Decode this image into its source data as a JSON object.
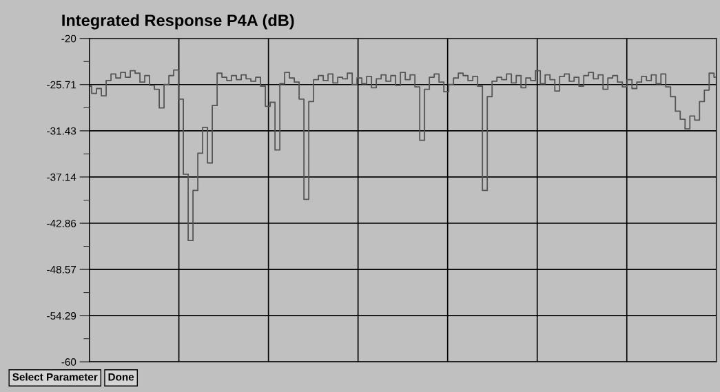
{
  "chart_data": {
    "type": "step",
    "title": "Integrated Response P4A (dB)",
    "categories": [
      null,
      null,
      null,
      null,
      null,
      null,
      null,
      null,
      null,
      null,
      null,
      null,
      null,
      null,
      null,
      null,
      null,
      null,
      null,
      null,
      null,
      null,
      null,
      null,
      null,
      null,
      null,
      null,
      null,
      null,
      null,
      null,
      null,
      null,
      null,
      null,
      null,
      null,
      null,
      null,
      null,
      null,
      null,
      null,
      null,
      null,
      null,
      null,
      null,
      null,
      null,
      null,
      null,
      null,
      null,
      null,
      null,
      null,
      null,
      null,
      null,
      null,
      null,
      null,
      null,
      null,
      null,
      null,
      null,
      null,
      null,
      null,
      null,
      null,
      null,
      null,
      null,
      null,
      null,
      null,
      null,
      null,
      null,
      null,
      null,
      null,
      null,
      null,
      null,
      null,
      null,
      null,
      null,
      null,
      null,
      null,
      null,
      null,
      null,
      null,
      null,
      null,
      null,
      null,
      null,
      null,
      null,
      null,
      null,
      null,
      null,
      null,
      null,
      null,
      null,
      null,
      null,
      null,
      null,
      null,
      null,
      null,
      null,
      null,
      null,
      null,
      null,
      null,
      null,
      null,
      null
    ],
    "series": [
      {
        "color": "#555555",
        "values": [
          -25.9,
          -26.8,
          -26.2,
          -27.1,
          -25.2,
          -24.4,
          -24.9,
          -24.2,
          -24.8,
          -24.0,
          -24.3,
          -25.4,
          -24.6,
          -25.8,
          -26.3,
          -28.6,
          -25.7,
          -24.6,
          -23.9,
          -27.5,
          -36.8,
          -45.0,
          -38.8,
          -34.2,
          -31.0,
          -35.4,
          -28.3,
          -24.3,
          -24.8,
          -25.2,
          -24.6,
          -25.1,
          -24.5,
          -25.0,
          -25.3,
          -24.8,
          -25.9,
          -28.4,
          -27.9,
          -33.8,
          -25.6,
          -24.2,
          -24.9,
          -25.4,
          -27.5,
          -39.9,
          -27.8,
          -25.1,
          -24.6,
          -25.2,
          -24.4,
          -25.5,
          -24.8,
          -25.0,
          -24.3,
          -25.7,
          -24.9,
          -25.6,
          -24.7,
          -26.1,
          -25.0,
          -24.5,
          -25.3,
          -24.6,
          -25.8,
          -24.2,
          -25.1,
          -24.5,
          -26.0,
          -32.6,
          -26.3,
          -24.8,
          -24.4,
          -25.4,
          -26.6,
          -25.7,
          -24.9,
          -24.3,
          -24.6,
          -25.2,
          -24.7,
          -25.9,
          -38.8,
          -27.2,
          -25.3,
          -24.8,
          -25.1,
          -24.4,
          -25.5,
          -24.6,
          -26.1,
          -24.9,
          -25.2,
          -24.0,
          -25.6,
          -24.5,
          -25.1,
          -26.5,
          -24.7,
          -24.4,
          -25.3,
          -24.8,
          -25.9,
          -24.6,
          -24.2,
          -25.0,
          -24.5,
          -26.3,
          -24.9,
          -24.6,
          -25.4,
          -26.0,
          -25.1,
          -26.2,
          -25.4,
          -24.7,
          -25.2,
          -24.5,
          -25.6,
          -24.4,
          -26.0,
          -27.2,
          -29.0,
          -30.0,
          -31.2,
          -29.6,
          -30.1,
          -27.8,
          -26.4,
          -24.3,
          -24.8
        ]
      }
    ],
    "ylim": [
      -60,
      -20
    ],
    "yticks": [
      -20,
      -25.71,
      -31.43,
      -37.14,
      -42.86,
      -48.57,
      -54.29,
      -60
    ],
    "grid": true,
    "annotations": [
      "Select Parameter",
      "Done"
    ]
  }
}
